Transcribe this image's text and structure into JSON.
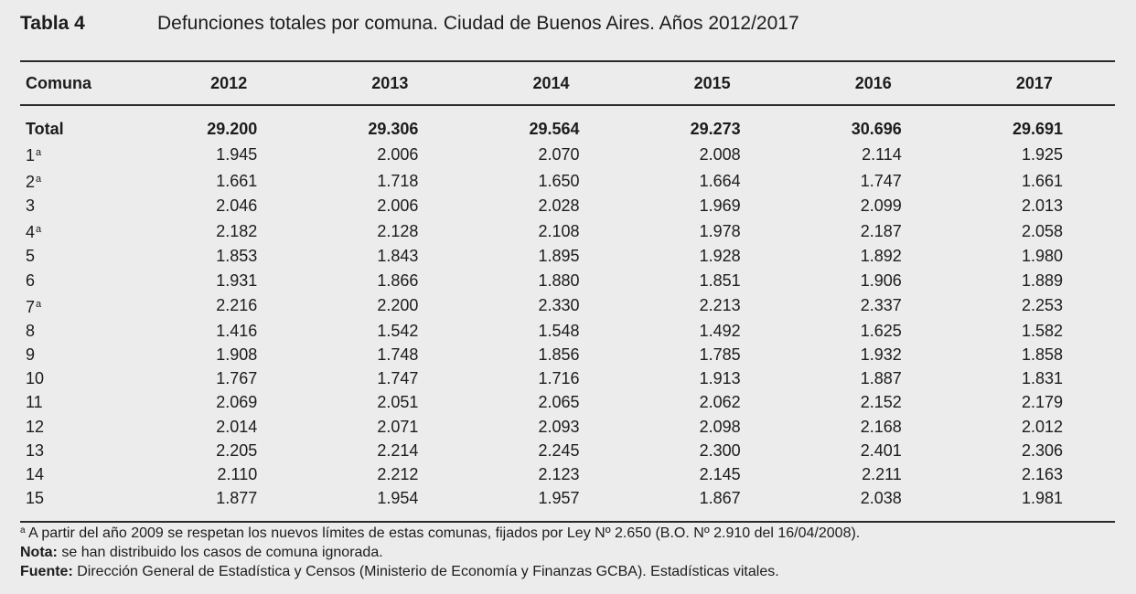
{
  "header": {
    "table_label": "Tabla 4",
    "title": "Defunciones totales por comuna. Ciudad de Buenos Aires. Años 2012/2017"
  },
  "table": {
    "columns": [
      "Comuna",
      "2012",
      "2013",
      "2014",
      "2015",
      "2016",
      "2017"
    ],
    "total": {
      "label": "Total",
      "values": [
        "29.200",
        "29.306",
        "29.564",
        "29.273",
        "30.696",
        "29.691"
      ]
    },
    "rows": [
      {
        "comuna": "1",
        "note": "a",
        "values": [
          "1.945",
          "2.006",
          "2.070",
          "2.008",
          "2.114",
          "1.925"
        ]
      },
      {
        "comuna": "2",
        "note": "a",
        "values": [
          "1.661",
          "1.718",
          "1.650",
          "1.664",
          "1.747",
          "1.661"
        ]
      },
      {
        "comuna": "3",
        "note": "",
        "values": [
          "2.046",
          "2.006",
          "2.028",
          "1.969",
          "2.099",
          "2.013"
        ]
      },
      {
        "comuna": "4",
        "note": "a",
        "values": [
          "2.182",
          "2.128",
          "2.108",
          "1.978",
          "2.187",
          "2.058"
        ]
      },
      {
        "comuna": "5",
        "note": "",
        "values": [
          "1.853",
          "1.843",
          "1.895",
          "1.928",
          "1.892",
          "1.980"
        ]
      },
      {
        "comuna": "6",
        "note": "",
        "values": [
          "1.931",
          "1.866",
          "1.880",
          "1.851",
          "1.906",
          "1.889"
        ]
      },
      {
        "comuna": "7",
        "note": "a",
        "values": [
          "2.216",
          "2.200",
          "2.330",
          "2.213",
          "2.337",
          "2.253"
        ]
      },
      {
        "comuna": "8",
        "note": "",
        "values": [
          "1.416",
          "1.542",
          "1.548",
          "1.492",
          "1.625",
          "1.582"
        ]
      },
      {
        "comuna": "9",
        "note": "",
        "values": [
          "1.908",
          "1.748",
          "1.856",
          "1.785",
          "1.932",
          "1.858"
        ]
      },
      {
        "comuna": "10",
        "note": "",
        "values": [
          "1.767",
          "1.747",
          "1.716",
          "1.913",
          "1.887",
          "1.831"
        ]
      },
      {
        "comuna": "11",
        "note": "",
        "values": [
          "2.069",
          "2.051",
          "2.065",
          "2.062",
          "2.152",
          "2.179"
        ]
      },
      {
        "comuna": "12",
        "note": "",
        "values": [
          "2.014",
          "2.071",
          "2.093",
          "2.098",
          "2.168",
          "2.012"
        ]
      },
      {
        "comuna": "13",
        "note": "",
        "values": [
          "2.205",
          "2.214",
          "2.245",
          "2.300",
          "2.401",
          "2.306"
        ]
      },
      {
        "comuna": "14",
        "note": "",
        "values": [
          "2.110",
          "2.212",
          "2.123",
          "2.145",
          "2.211",
          "2.163"
        ]
      },
      {
        "comuna": "15",
        "note": "",
        "values": [
          "1.877",
          "1.954",
          "1.957",
          "1.867",
          "2.038",
          "1.981"
        ]
      }
    ]
  },
  "notes": {
    "footnote_mark": "a",
    "footnote_text": "A partir del año 2009 se respetan los nuevos límites de estas comunas, fijados por Ley Nº 2.650 (B.O. Nº 2.910 del 16/04/2008).",
    "nota_label": "Nota:",
    "nota_text": "se han distribuido los casos de comuna ignorada.",
    "fuente_label": "Fuente:",
    "fuente_text": "Dirección General de Estadística y Censos (Ministerio de Economía y Finanzas GCBA). Estadísticas vitales."
  }
}
